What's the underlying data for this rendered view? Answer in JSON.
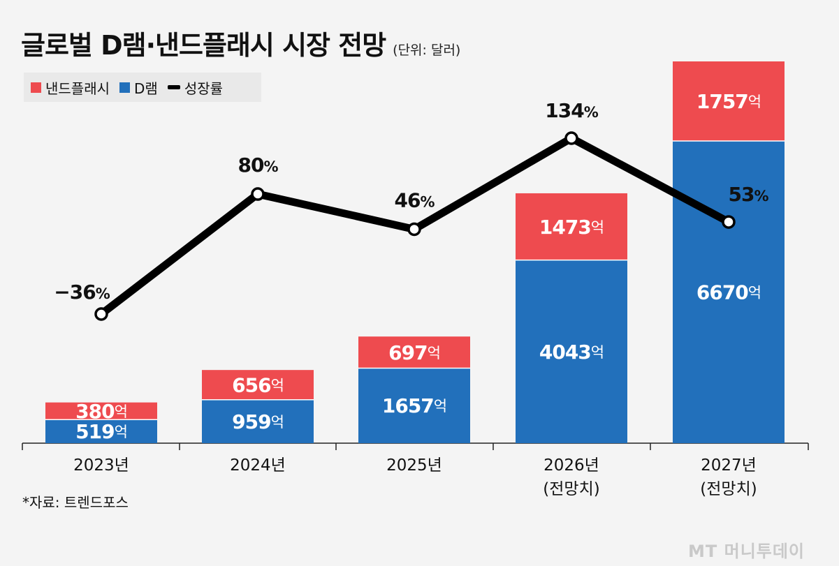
{
  "header": {
    "title": "글로벌 D램·낸드플래시 시장 전망",
    "unit": "(단위: 달러)"
  },
  "legend": {
    "nand": "낸드플래시",
    "dram": "D램",
    "growth": "성장률"
  },
  "colors": {
    "nand": "#ee4b4f",
    "dram": "#2270bb",
    "line": "#000000"
  },
  "source": "*자료: 트렌드포스",
  "watermark": "MT 머니투데이",
  "chart_data": {
    "type": "bar",
    "stacked": true,
    "title": "글로벌 D램·낸드플래시 시장 전망",
    "unit": "단위: 달러",
    "categories": [
      "2023년",
      "2024년",
      "2025년",
      "2026년",
      "2027년"
    ],
    "category_notes": [
      "",
      "",
      "",
      "(전망치)",
      "(전망치)"
    ],
    "value_suffix": "억",
    "series": [
      {
        "name": "D램",
        "values": [
          519,
          959,
          1657,
          4043,
          6670
        ]
      },
      {
        "name": "낸드플래시",
        "values": [
          380,
          656,
          697,
          1473,
          1757
        ]
      }
    ],
    "line_series": {
      "name": "성장률",
      "values": [
        -36,
        80,
        46,
        134,
        53
      ],
      "display": [
        "−36",
        "80",
        "46",
        "134",
        "53"
      ],
      "suffix": "%"
    },
    "ylim": [
      0,
      8427
    ],
    "grid": false,
    "legend_position": "top-left"
  }
}
